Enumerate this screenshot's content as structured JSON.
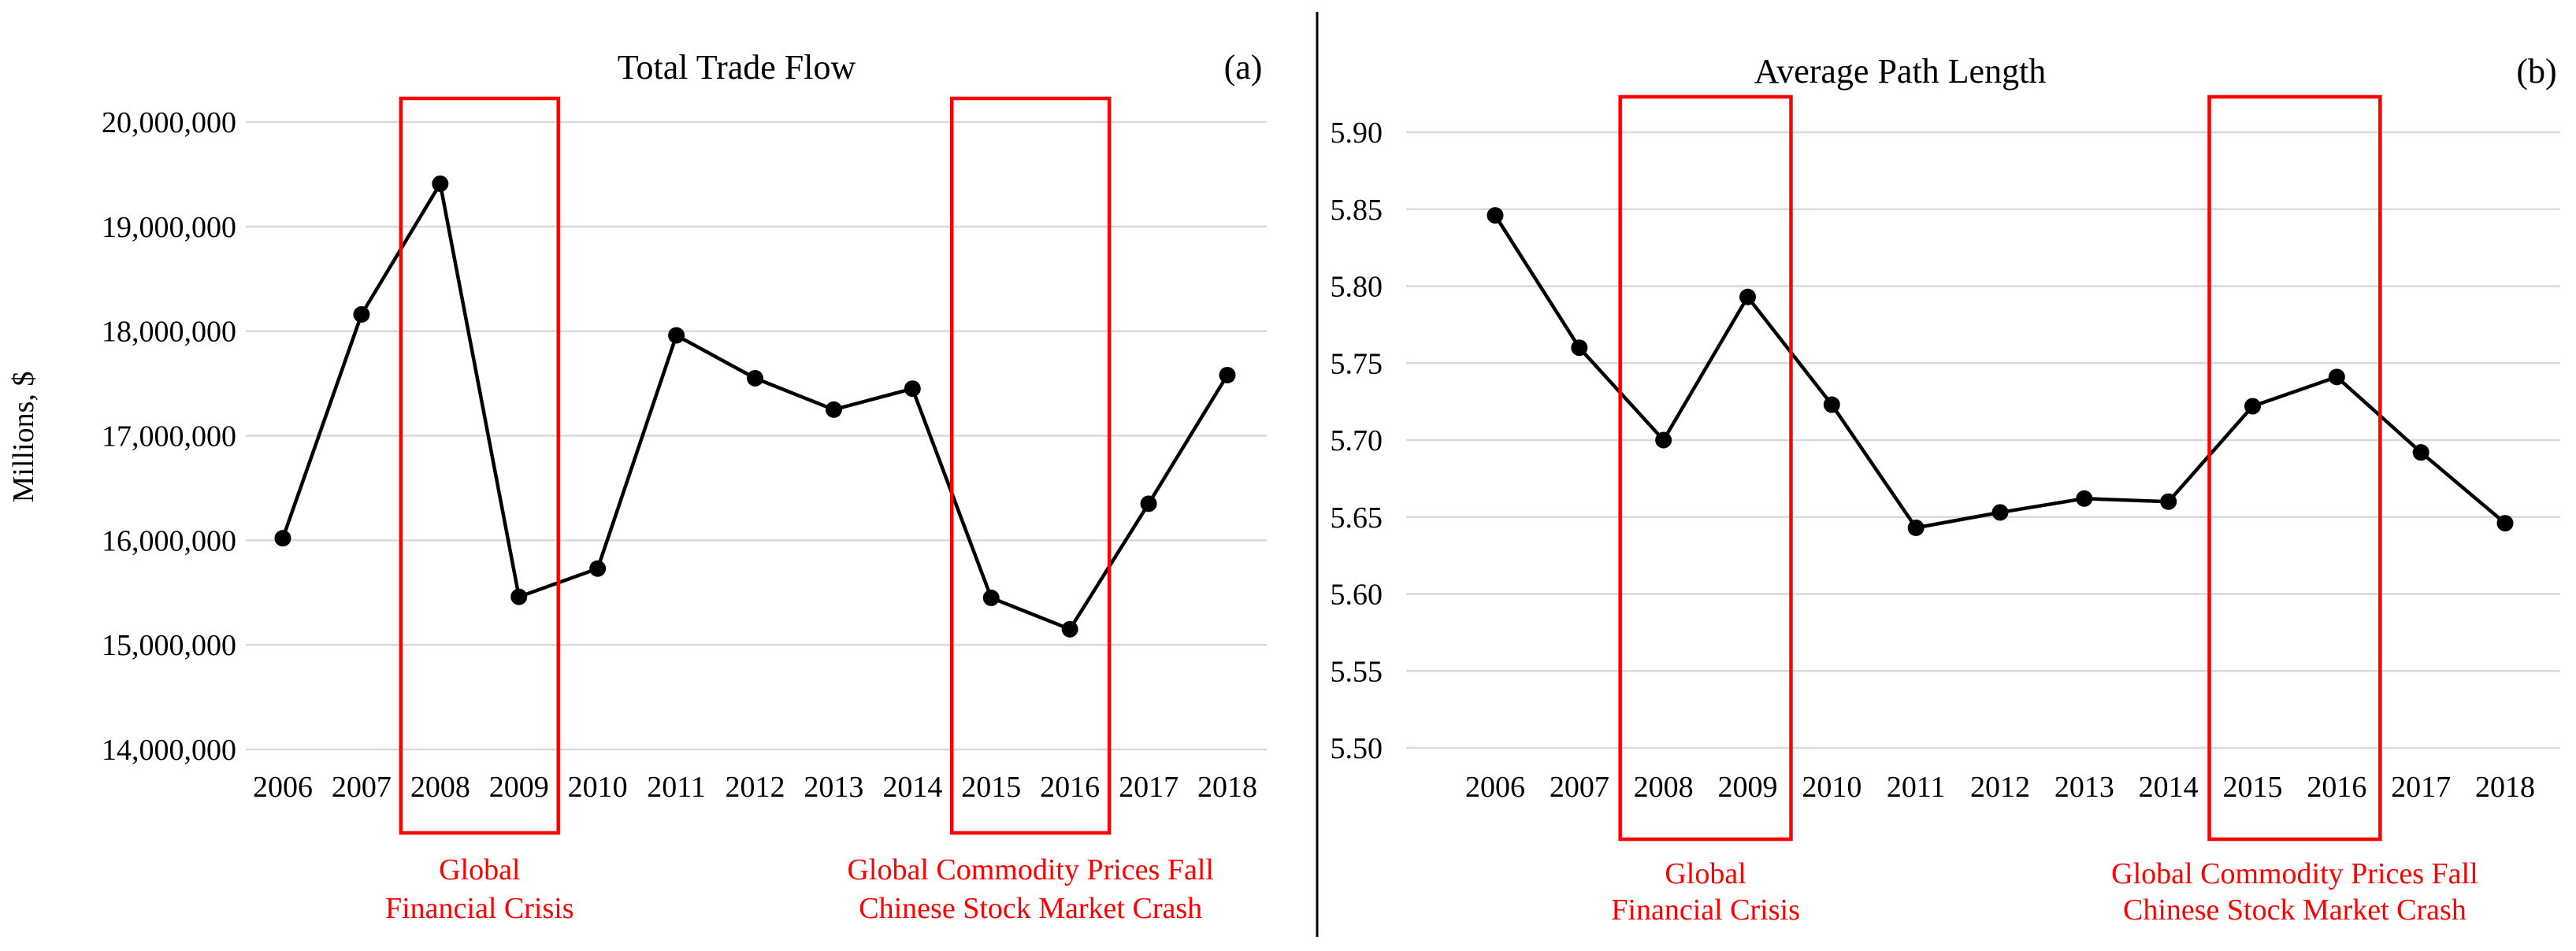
{
  "chart_data": [
    {
      "type": "line",
      "panel": "(a)",
      "title": "Total Trade Flow",
      "xlabel": "",
      "ylabel": "Millions, $",
      "categories": [
        "2006",
        "2007",
        "2008",
        "2009",
        "2010",
        "2011",
        "2012",
        "2013",
        "2014",
        "2015",
        "2016",
        "2017",
        "2018"
      ],
      "values": [
        16020000,
        18160000,
        19410000,
        15460000,
        15730000,
        17960000,
        17550000,
        17250000,
        17450000,
        15450000,
        15150000,
        16350000,
        17580000
      ],
      "yticks": [
        14000000,
        15000000,
        16000000,
        17000000,
        18000000,
        19000000,
        20000000
      ],
      "ytick_labels": [
        "14,000,000",
        "15,000,000",
        "16,000,000",
        "17,000,000",
        "18,000,000",
        "19,000,000",
        "20,000,000"
      ],
      "ylim": [
        14000000,
        20000000
      ],
      "grid": true,
      "highlights": [
        {
          "from": "2008",
          "to": "2009",
          "lines": [
            "Global",
            "Financial Crisis"
          ],
          "color": "#ff0000"
        },
        {
          "from": "2015",
          "to": "2016",
          "lines": [
            "Global Commodity Prices Fall",
            "Chinese Stock Market Crash"
          ],
          "color": "#ff0000"
        }
      ]
    },
    {
      "type": "line",
      "panel": "(b)",
      "title": "Average Path Length",
      "xlabel": "",
      "ylabel": "",
      "categories": [
        "2006",
        "2007",
        "2008",
        "2009",
        "2010",
        "2011",
        "2012",
        "2013",
        "2014",
        "2015",
        "2016",
        "2017",
        "2018"
      ],
      "values": [
        5.846,
        5.76,
        5.7,
        5.793,
        5.723,
        5.643,
        5.653,
        5.662,
        5.66,
        5.722,
        5.741,
        5.692,
        5.646
      ],
      "yticks": [
        5.5,
        5.55,
        5.6,
        5.65,
        5.7,
        5.75,
        5.8,
        5.85,
        5.9
      ],
      "ytick_labels": [
        "5.50",
        "5.55",
        "5.60",
        "5.65",
        "5.70",
        "5.75",
        "5.80",
        "5.85",
        "5.90"
      ],
      "ylim": [
        5.5,
        5.9
      ],
      "grid": true,
      "highlights": [
        {
          "from": "2008",
          "to": "2009",
          "lines": [
            "Global",
            "Financial Crisis"
          ],
          "color": "#ff0000"
        },
        {
          "from": "2015",
          "to": "2016",
          "lines": [
            "Global Commodity Prices Fall",
            "Chinese Stock Market Crash"
          ],
          "color": "#ff0000"
        }
      ]
    }
  ]
}
